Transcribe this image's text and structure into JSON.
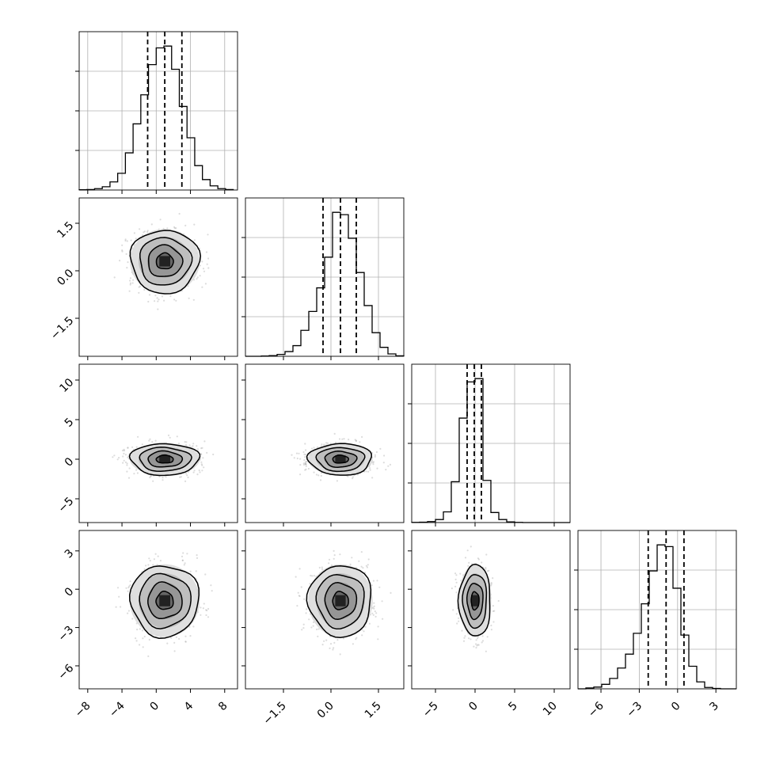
{
  "chart_data": {
    "type": "corner",
    "title": "",
    "variables": [
      {
        "index": 0,
        "mean": 1.0,
        "std": 2.0,
        "quantiles": [
          -1.0,
          1.0,
          3.0
        ],
        "range": [
          -9.0,
          9.5
        ],
        "ticks": [
          -8,
          -4,
          0,
          4,
          8
        ],
        "tick_labels": [
          "−8",
          "−4",
          "0",
          "4",
          "8"
        ]
      },
      {
        "index": 1,
        "mean": 0.3,
        "std": 0.5,
        "quantiles": [
          -0.25,
          0.3,
          0.8
        ],
        "range": [
          -2.7,
          2.3
        ],
        "ticks": [
          -1.5,
          0.0,
          1.5
        ],
        "tick_labels": [
          "−1.5",
          "0.0",
          "1.5"
        ]
      },
      {
        "index": 2,
        "mean": 0.0,
        "std": 1.0,
        "quantiles": [
          -1.0,
          -0.1,
          0.8
        ],
        "range": [
          -8.0,
          12.0
        ],
        "ticks": [
          -5,
          0,
          5,
          10
        ],
        "tick_labels": [
          "−5",
          "0",
          "5",
          "10"
        ]
      },
      {
        "index": 3,
        "mean": -0.9,
        "std": 1.4,
        "quantiles": [
          -2.3,
          -0.9,
          0.5
        ],
        "range": [
          -7.8,
          4.6
        ],
        "ticks": [
          -6,
          -3,
          0,
          3
        ],
        "tick_labels": [
          "−6",
          "−3",
          "0",
          "3"
        ]
      }
    ],
    "histograms": [
      {
        "variable": 0,
        "bins": [
          -9.0,
          -8.1,
          -7.2,
          -6.3,
          -5.4,
          -4.5,
          -3.6,
          -2.7,
          -1.8,
          -0.9,
          0.0,
          0.9,
          1.8,
          2.7,
          3.6,
          4.5,
          5.4,
          6.3,
          7.2,
          8.1,
          9.0
        ],
        "counts": [
          1,
          2,
          6,
          14,
          35,
          72,
          160,
          285,
          410,
          540,
          612,
          620,
          520,
          360,
          225,
          105,
          45,
          18,
          6,
          2
        ]
      },
      {
        "variable": 1,
        "bins": [
          -2.7,
          -2.45,
          -2.2,
          -1.95,
          -1.7,
          -1.45,
          -1.2,
          -0.95,
          -0.7,
          -0.45,
          -0.2,
          0.05,
          0.3,
          0.55,
          0.8,
          1.05,
          1.3,
          1.55,
          1.8,
          2.05,
          2.3
        ],
        "counts": [
          0,
          0,
          1,
          3,
          8,
          20,
          45,
          110,
          190,
          290,
          420,
          610,
          600,
          500,
          355,
          215,
          100,
          38,
          10,
          2
        ]
      },
      {
        "variable": 2,
        "bins": [
          -8,
          -7,
          -6,
          -5,
          -4,
          -3,
          -2,
          -1,
          0,
          1,
          2,
          3,
          4,
          5,
          6,
          7,
          8,
          9,
          10,
          11,
          12
        ],
        "counts": [
          2,
          5,
          15,
          45,
          160,
          610,
          1560,
          2100,
          2150,
          630,
          150,
          45,
          10,
          2,
          0,
          0,
          0,
          0,
          0,
          0
        ]
      },
      {
        "variable": 3,
        "bins": [
          -7.8,
          -7.18,
          -6.56,
          -5.94,
          -5.32,
          -4.7,
          -4.08,
          -3.46,
          -2.84,
          -2.22,
          -1.6,
          -0.98,
          -0.36,
          0.26,
          0.88,
          1.5,
          2.12,
          2.74,
          3.36,
          3.98,
          4.6
        ],
        "counts": [
          0,
          5,
          10,
          26,
          60,
          120,
          200,
          320,
          490,
          680,
          830,
          820,
          580,
          310,
          130,
          40,
          8,
          2,
          0,
          0
        ]
      }
    ],
    "pairs": [
      {
        "x": 1,
        "y": 0
      },
      {
        "x": 2,
        "y": 0
      },
      {
        "x": 2,
        "y": 1
      },
      {
        "x": 3,
        "y": 0
      },
      {
        "x": 3,
        "y": 1
      },
      {
        "x": 3,
        "y": 2
      }
    ],
    "contour_levels_sigma": [
      0.5,
      1.0,
      1.5,
      2.0
    ],
    "grid": true
  }
}
